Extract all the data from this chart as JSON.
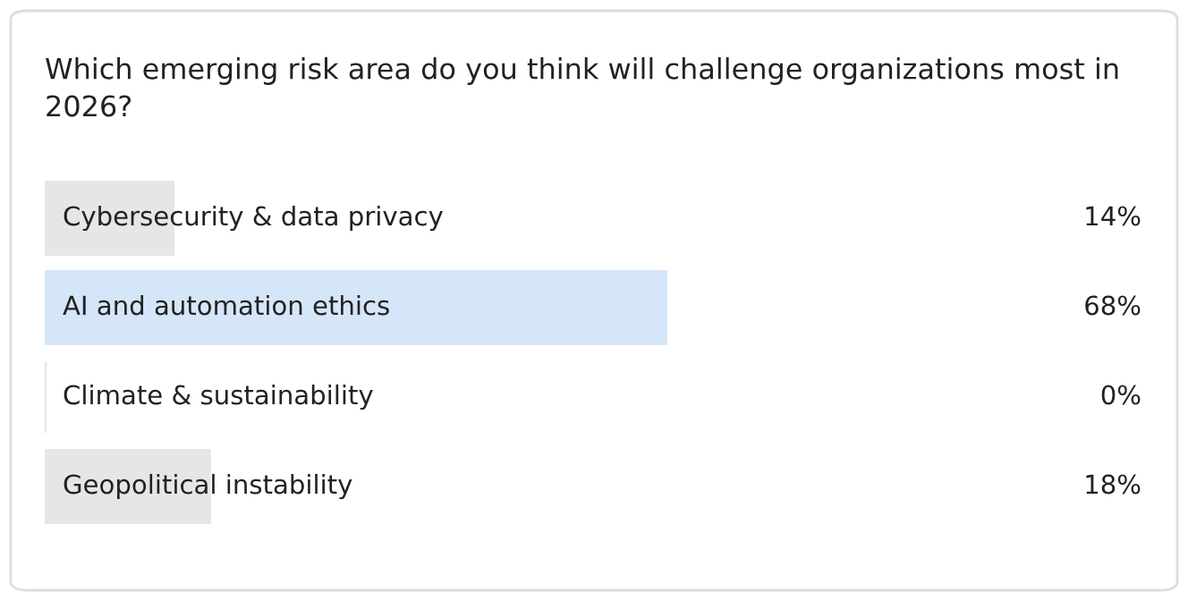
{
  "chart_data": {
    "type": "bar",
    "orientation": "horizontal",
    "title": "Which emerging risk area do you think will challenge organizations most in 2026?",
    "categories": [
      "Cybersecurity & data privacy",
      "AI and automation ethics",
      "Climate & sustainability",
      "Geopolitical instability"
    ],
    "values": [
      14,
      68,
      0,
      18
    ],
    "colors": [
      "#e6e6e6",
      "#d5e6f8",
      "#e6e6e6",
      "#e6e6e6"
    ],
    "value_labels": [
      "14%",
      "68%",
      "0%",
      "18%"
    ],
    "tick_labels": false,
    "legend": false
  }
}
